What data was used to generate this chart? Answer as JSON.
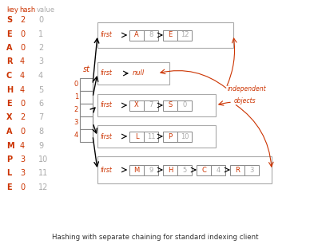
{
  "title": "Hashing with separate chaining for standard indexing client",
  "bg_color": "#ffffff",
  "key_color": "#cc3300",
  "hash_color": "#cc3300",
  "value_color": "#aaaaaa",
  "first_color": "#cc3300",
  "node_border_color": "#888888",
  "node_key_color": "#cc3300",
  "node_val_color": "#aaaaaa",
  "arrow_color": "#000000",
  "red_arrow_color": "#cc3300",
  "table_keys": [
    "S",
    "E",
    "A",
    "R",
    "C",
    "H",
    "E",
    "X",
    "A",
    "M",
    "P",
    "L",
    "E"
  ],
  "table_hashes": [
    2,
    0,
    0,
    4,
    4,
    4,
    0,
    2,
    0,
    4,
    3,
    3,
    0
  ],
  "table_values": [
    0,
    1,
    2,
    3,
    4,
    5,
    6,
    7,
    8,
    9,
    10,
    11,
    12
  ],
  "st_indices": [
    0,
    1,
    2,
    3,
    4
  ],
  "chains": {
    "0": {
      "nodes": [
        [
          "A",
          8
        ],
        [
          "E",
          12
        ]
      ],
      "null": false
    },
    "1": {
      "nodes": [],
      "null": true
    },
    "2": {
      "nodes": [
        [
          "X",
          7
        ],
        [
          "S",
          0
        ]
      ],
      "null": false
    },
    "3": {
      "nodes": [
        [
          "L",
          11
        ],
        [
          "P",
          10
        ]
      ],
      "null": false
    },
    "4": {
      "nodes": [
        [
          "M",
          9
        ],
        [
          "H",
          5
        ],
        [
          "C",
          4
        ],
        [
          "R",
          3
        ]
      ],
      "null": false
    }
  }
}
